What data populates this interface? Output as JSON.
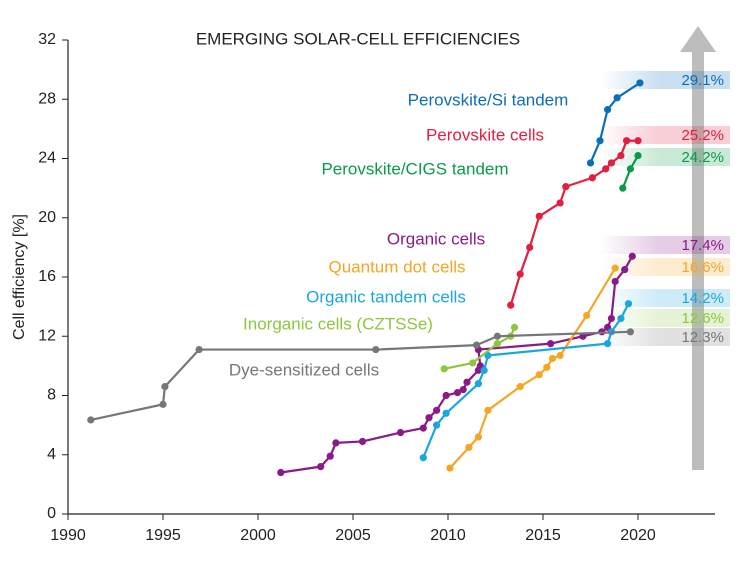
{
  "chart_data": {
    "type": "line",
    "title": "EMERGING SOLAR-CELL EFFICIENCIES",
    "y_label": "Cell efficiency [%]",
    "xlim": [
      1990,
      2024
    ],
    "ylim": [
      0,
      32
    ],
    "xticks": [
      1990,
      1995,
      2000,
      2005,
      2010,
      2015,
      2020
    ],
    "yticks": [
      0,
      4,
      8,
      12,
      16,
      20,
      24,
      28,
      32
    ],
    "grid": false,
    "series": [
      {
        "name": "Perovskite/Si tandem",
        "color": "#0b6fb8",
        "x": [
          2017.5,
          2018,
          2018.4,
          2018.9,
          2020.1
        ],
        "values": [
          23.7,
          25.2,
          27.3,
          28.1,
          29.1
        ],
        "value_labels": [
          null,
          null,
          null,
          null,
          "29.1%"
        ]
      },
      {
        "name": "Perovskite cells",
        "color": "#e31e3f",
        "x": [
          2013.3,
          2013.8,
          2014.3,
          2014.8,
          2015.9,
          2016.2,
          2017.6,
          2018.3,
          2018.6,
          2019.1,
          2019.4,
          2020
        ],
        "values": [
          14.1,
          16.2,
          18.0,
          20.1,
          21.0,
          22.1,
          22.7,
          23.3,
          23.7,
          24.2,
          25.2,
          25.2
        ],
        "value_labels": [
          null,
          null,
          null,
          null,
          null,
          null,
          null,
          null,
          null,
          null,
          null,
          "25.2%"
        ]
      },
      {
        "name": "Perovskite/CIGS tandem",
        "color": "#0a9b48",
        "x": [
          2019.2,
          2019.6,
          2020
        ],
        "values": [
          22.0,
          23.3,
          24.2
        ],
        "value_labels": [
          null,
          null,
          "24.2%"
        ]
      },
      {
        "name": "Organic cells",
        "color": "#8b1a89",
        "x": [
          2001.2,
          2003.3,
          2003.8,
          2004.1,
          2005.5,
          2007.5,
          2008.7,
          2009,
          2009.4,
          2009.9,
          2010.5,
          2010.8,
          2011,
          2011.6,
          2011.7,
          2011.6,
          2015.4,
          2017.1,
          2018.1,
          2018.4,
          2018.6,
          2018.8,
          2019.3,
          2019.7
        ],
        "values": [
          2.8,
          3.2,
          3.9,
          4.8,
          4.9,
          5.5,
          5.8,
          6.5,
          7.0,
          8.0,
          8.2,
          8.4,
          8.9,
          9.7,
          10.0,
          11.1,
          11.5,
          12.0,
          12.3,
          12.6,
          13.2,
          15.7,
          16.5,
          17.4
        ],
        "value_labels": [
          null,
          null,
          null,
          null,
          null,
          null,
          null,
          null,
          null,
          null,
          null,
          null,
          null,
          null,
          null,
          null,
          null,
          null,
          null,
          null,
          null,
          null,
          null,
          "17.4%"
        ]
      },
      {
        "name": "Quantum dot cells",
        "color": "#f5a623",
        "x": [
          2010.1,
          2011.1,
          2011.6,
          2012.1,
          2013.8,
          2014.8,
          2015.2,
          2015.5,
          2015.9,
          2017.3,
          2018.8
        ],
        "values": [
          3.1,
          4.5,
          5.2,
          7.0,
          8.6,
          9.4,
          9.9,
          10.5,
          10.7,
          13.4,
          16.6
        ],
        "value_labels": [
          null,
          null,
          null,
          null,
          null,
          null,
          null,
          null,
          null,
          null,
          "16.6%"
        ]
      },
      {
        "name": "Organic tandem cells",
        "color": "#1aa7e0",
        "x": [
          2008.7,
          2009.4,
          2009.9,
          2011.6,
          2011.9,
          2012.1,
          2018.4,
          2018.6,
          2019.1,
          2019.5
        ],
        "values": [
          3.8,
          6.0,
          6.8,
          8.8,
          9.7,
          10.7,
          11.5,
          12.3,
          13.2,
          14.2
        ],
        "value_labels": [
          null,
          null,
          null,
          null,
          null,
          null,
          null,
          null,
          null,
          "14.2%"
        ]
      },
      {
        "name": "Inorganic cells (CZTSSe)",
        "color": "#8dc63f",
        "x": [
          2009.8,
          2011.3,
          2012.6,
          2013.3,
          2013.5
        ],
        "values": [
          9.8,
          10.2,
          11.5,
          12.0,
          12.6
        ],
        "value_labels": [
          null,
          null,
          null,
          null,
          "12.6%"
        ]
      },
      {
        "name": "Dye-sensitized cells",
        "color": "#777777",
        "x": [
          1991.2,
          1995,
          1995.1,
          1996.9,
          2006.2,
          2011.5,
          2012.6,
          2019.6
        ],
        "values": [
          6.35,
          7.4,
          8.6,
          11.1,
          11.1,
          11.4,
          12.0,
          12.3
        ],
        "value_labels": [
          null,
          null,
          null,
          null,
          null,
          null,
          null,
          "12.3%"
        ]
      }
    ]
  }
}
